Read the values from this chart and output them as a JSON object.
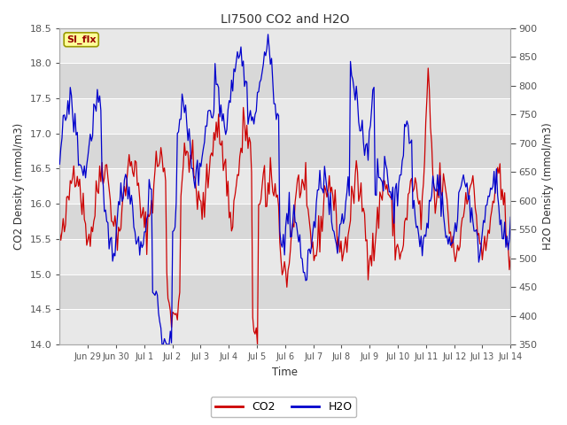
{
  "title": "LI7500 CO2 and H2O",
  "xlabel": "Time",
  "ylabel_left": "CO2 Density (mmol/m3)",
  "ylabel_right": "H2O Density (mmol/m3)",
  "co2_color": "#cc0000",
  "h2o_color": "#0000cc",
  "ylim_left": [
    14.0,
    18.5
  ],
  "ylim_right": [
    350,
    900
  ],
  "yticks_left": [
    14.0,
    14.5,
    15.0,
    15.5,
    16.0,
    16.5,
    17.0,
    17.5,
    18.0,
    18.5
  ],
  "yticks_right": [
    350,
    400,
    450,
    500,
    550,
    600,
    650,
    700,
    750,
    800,
    850,
    900
  ],
  "annotation_text": "SI_flx",
  "annotation_bg": "#ffff99",
  "annotation_fg": "#990000",
  "legend_labels": [
    "CO2",
    "H2O"
  ],
  "tick_labels": [
    "Jun 29",
    "Jun 30",
    "Jul 1",
    "Jul 2",
    "Jul 3",
    "Jul 4",
    "Jul 5",
    "Jul 6",
    "Jul 7",
    "Jul 8",
    "Jul 9",
    "Jul 10",
    "Jul 11",
    "Jul 12",
    "Jul 13",
    "Jul 14"
  ],
  "band_colors": [
    "#e8e8e8",
    "#d8d8d8"
  ],
  "n_days": 16,
  "seed": 42
}
